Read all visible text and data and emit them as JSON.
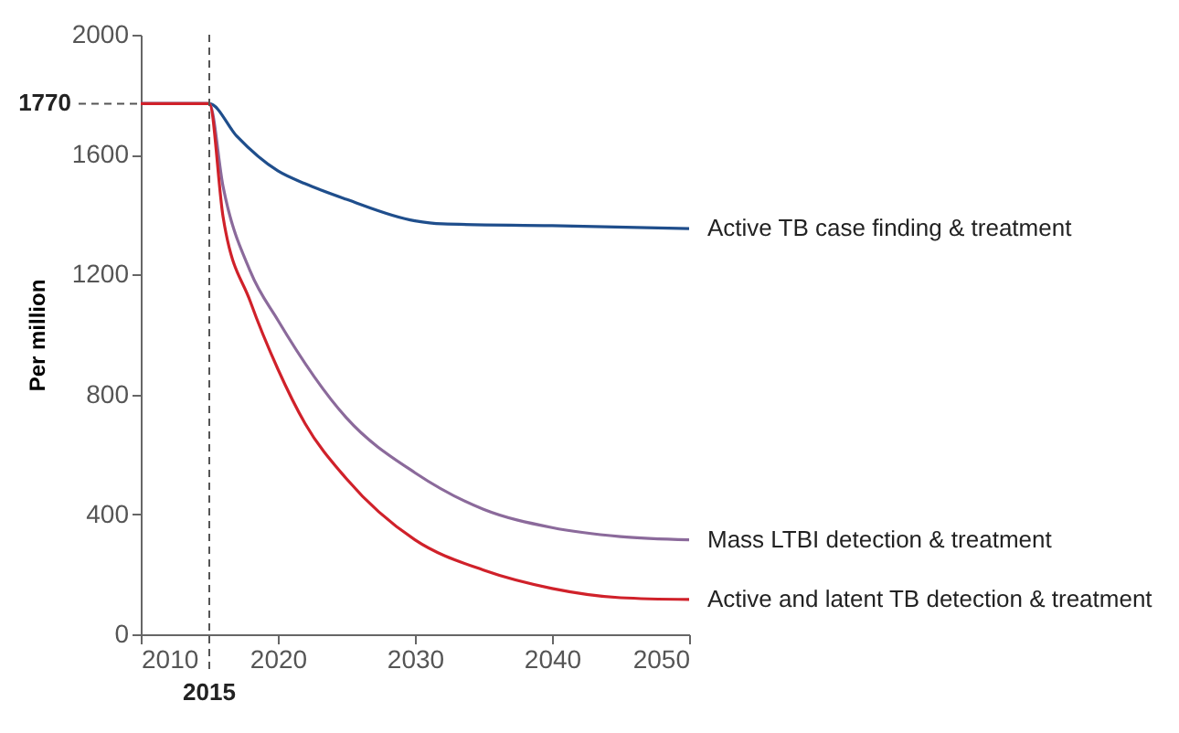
{
  "chart_data": {
    "type": "line",
    "ylabel": "Per million",
    "xlim": [
      2010,
      2050
    ],
    "ylim": [
      0,
      2000
    ],
    "xticks": [
      2010,
      2020,
      2030,
      2040,
      2050
    ],
    "yticks": [
      0,
      400,
      800,
      1200,
      1600,
      2000
    ],
    "grid": false,
    "legend": false,
    "marker": "none",
    "line_style": "solid",
    "ref_lines": [
      {
        "axis": "x",
        "value": 2015,
        "label": "2015",
        "line_style": "dashed"
      },
      {
        "axis": "y",
        "value": 1770,
        "label": "1770",
        "line_style": "dashed"
      }
    ],
    "series": [
      {
        "name": "Active TB case finding & treatment",
        "color": "#1f4e8c",
        "x": [
          2010,
          2015,
          2017,
          2020,
          2022,
          2025,
          2030,
          2032,
          2040,
          2050
        ],
        "values": [
          1770,
          1770,
          1662,
          1546,
          1503,
          1451,
          1379,
          1369,
          1363,
          1353
        ]
      },
      {
        "name": "Mass LTBI detection & treatment",
        "color": "#8b6a9b",
        "x": [
          2010,
          2015,
          2016,
          2018,
          2020,
          2025,
          2030,
          2035,
          2040,
          2045,
          2050
        ],
        "values": [
          1770,
          1770,
          1495,
          1210,
          1048,
          722,
          539,
          417,
          356,
          326,
          315
        ]
      },
      {
        "name": "Active and latent TB detection & treatment",
        "color": "#d0212a",
        "x": [
          2010,
          2015,
          2016,
          2018,
          2020,
          2022,
          2025,
          2030,
          2035,
          2040,
          2045,
          2050
        ],
        "values": [
          1770,
          1770,
          1394,
          1109,
          885,
          702,
          519,
          315,
          214,
          153,
          122,
          116
        ]
      }
    ]
  }
}
